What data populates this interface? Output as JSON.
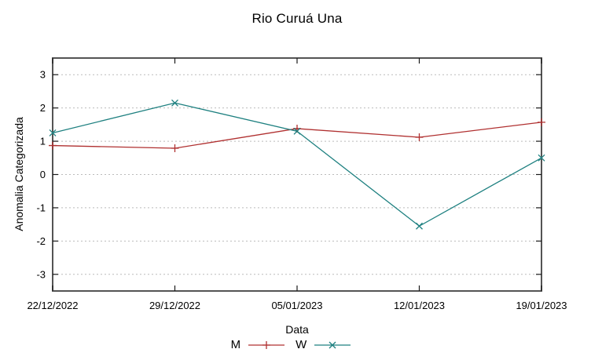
{
  "chart_data": {
    "type": "line",
    "title": "Rio Curuá Una",
    "xlabel": "Data",
    "ylabel": "Anomalia Categorizada",
    "categories": [
      "22/12/2022",
      "29/12/2022",
      "05/01/2023",
      "12/01/2023",
      "19/01/2023"
    ],
    "series": [
      {
        "name": "M",
        "color": "#b03030",
        "marker": "plus",
        "values": [
          0.87,
          0.79,
          1.38,
          1.12,
          1.57
        ]
      },
      {
        "name": "W",
        "color": "#1e8080",
        "marker": "cross",
        "values": [
          1.25,
          2.15,
          1.3,
          -1.55,
          0.5
        ]
      }
    ],
    "yticks": [
      -3,
      -2,
      -1,
      0,
      1,
      2,
      3
    ],
    "ylim": [
      -3.5,
      3.5
    ],
    "grid": {
      "horizontal": true,
      "vertical": false,
      "style": "dashed",
      "color": "#bbbbbb"
    },
    "border_color": "#545454",
    "tick_color": "#1a1a1a",
    "text_color": "#000000",
    "legend_position": "bottom-center"
  }
}
